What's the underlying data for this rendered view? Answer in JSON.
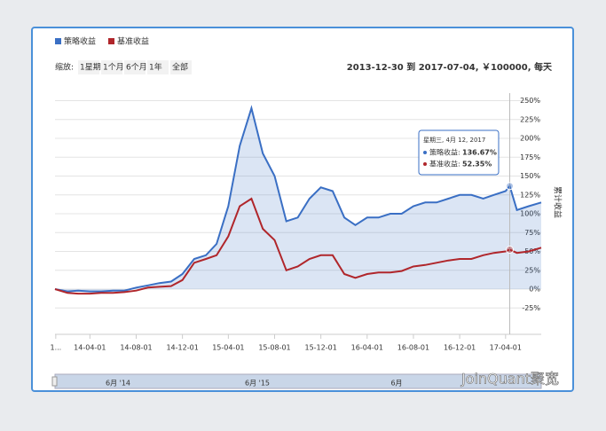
{
  "chart_data": {
    "type": "line",
    "legend": [
      "策略收益",
      "基准收益"
    ],
    "range_text": "2013-12-30 到 2017-07-04, ￥100000, 每天",
    "zoom": {
      "label": "缩放:",
      "buttons": [
        "1星期",
        "1个月",
        "6个月",
        "1年",
        "全部"
      ]
    },
    "ylabel": "累计收益",
    "watermark": "JoinQuant聚宽",
    "navigator_labels": [
      "6月 '14",
      "6月 '15",
      "6月"
    ],
    "tooltip": {
      "title": "星期三, 4月 12, 2017",
      "labels": [
        "策略收益:",
        "基准收益:"
      ]
    },
    "x": [
      "13-12-30",
      "14-02-01",
      "14-03-01",
      "14-04-01",
      "14-05-01",
      "14-06-01",
      "14-07-01",
      "14-08-01",
      "14-09-01",
      "14-10-01",
      "14-11-01",
      "14-12-01",
      "15-01-01",
      "15-02-01",
      "15-03-01",
      "15-04-01",
      "15-05-01",
      "15-06-01",
      "15-07-01",
      "15-08-01",
      "15-09-01",
      "15-10-01",
      "15-11-01",
      "15-12-01",
      "16-01-01",
      "16-02-01",
      "16-03-01",
      "16-04-01",
      "16-05-01",
      "16-06-01",
      "16-07-01",
      "16-08-01",
      "16-09-01",
      "16-10-01",
      "16-11-01",
      "16-12-01",
      "17-01-01",
      "17-02-01",
      "17-03-01",
      "17-04-01",
      "17-04-12",
      "17-05-01",
      "17-06-01",
      "17-07-04"
    ],
    "series": [
      {
        "name": "策略收益",
        "color": "#3a6fc4",
        "values": [
          0,
          -3,
          -2,
          -3,
          -3,
          -2,
          -2,
          2,
          5,
          8,
          10,
          20,
          40,
          45,
          60,
          110,
          190,
          240,
          180,
          150,
          90,
          95,
          120,
          135,
          130,
          95,
          85,
          95,
          95,
          100,
          100,
          110,
          115,
          115,
          120,
          125,
          125,
          120,
          125,
          130,
          136.67,
          105,
          110,
          115
        ],
        "value_labels": [
          null,
          null,
          null,
          null,
          null,
          null,
          null,
          null,
          null,
          null,
          null,
          null,
          null,
          null,
          null,
          null,
          null,
          null,
          null,
          null,
          null,
          null,
          null,
          null,
          null,
          null,
          null,
          null,
          null,
          null,
          null,
          null,
          null,
          null,
          null,
          null,
          null,
          null,
          null,
          null,
          "136.67%",
          null,
          null,
          null
        ]
      },
      {
        "name": "基准收益",
        "color": "#b0262b",
        "values": [
          0,
          -5,
          -6,
          -6,
          -5,
          -5,
          -4,
          -2,
          2,
          3,
          4,
          12,
          35,
          40,
          45,
          70,
          110,
          120,
          80,
          65,
          25,
          30,
          40,
          45,
          45,
          20,
          15,
          20,
          22,
          22,
          24,
          30,
          32,
          35,
          38,
          40,
          40,
          45,
          48,
          50,
          52.35,
          48,
          50,
          55
        ],
        "value_labels": [
          null,
          null,
          null,
          null,
          null,
          null,
          null,
          null,
          null,
          null,
          null,
          null,
          null,
          null,
          null,
          null,
          null,
          null,
          null,
          null,
          null,
          null,
          null,
          null,
          null,
          null,
          null,
          null,
          null,
          null,
          null,
          null,
          null,
          null,
          null,
          null,
          null,
          null,
          null,
          null,
          "52.35%",
          null,
          null,
          null
        ]
      }
    ],
    "xlim": [
      "13-12-30",
      "17-07-04"
    ],
    "xticks": [
      {
        "value": "14-01-01",
        "label": "1..."
      },
      "14-04-01",
      "14-08-01",
      "14-12-01",
      "15-04-01",
      "15-08-01",
      "15-12-01",
      "16-04-01",
      "16-08-01",
      "16-12-01",
      "17-04-01"
    ],
    "ylim": [
      -40,
      260
    ],
    "yticks": [
      {
        "value": -25,
        "label": "-25%"
      },
      {
        "value": 0,
        "label": "0%"
      },
      {
        "value": 25,
        "label": "25%"
      },
      {
        "value": 50,
        "label": "50%"
      },
      {
        "value": 75,
        "label": "75%"
      },
      {
        "value": 100,
        "label": "100%"
      },
      {
        "value": 125,
        "label": "125%"
      },
      {
        "value": 150,
        "label": "150%"
      },
      {
        "value": 175,
        "label": "175%"
      },
      {
        "value": 200,
        "label": "200%"
      },
      {
        "value": 225,
        "label": "225%"
      },
      {
        "value": 250,
        "label": "250%"
      }
    ],
    "grid": true
  }
}
